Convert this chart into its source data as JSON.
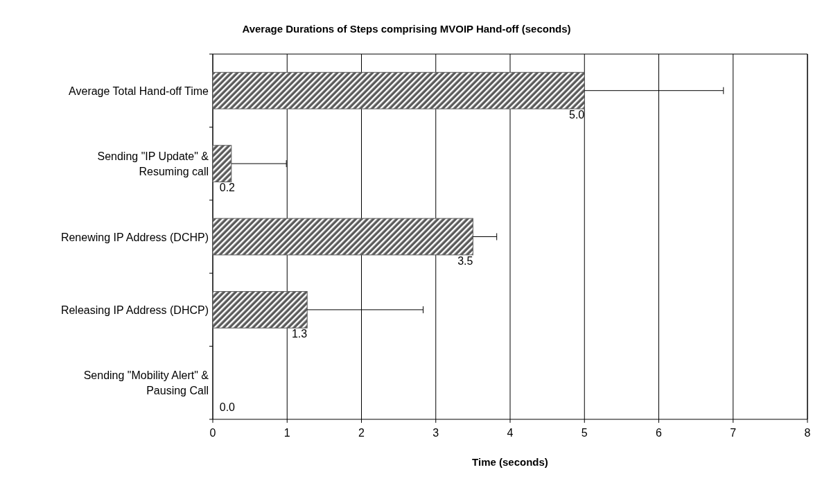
{
  "chart_data": {
    "type": "bar",
    "orientation": "horizontal",
    "title": "Average Durations of Steps comprising MVOIP Hand-off (seconds)",
    "xlabel": "Time (seconds)",
    "categories": [
      "Average Total Hand-off Time",
      "Sending \"IP Update\" & Resuming call",
      "Renewing IP Address (DCHP)",
      "Releasing IP Address (DHCP)",
      "Sending \"Mobility Alert\" & Pausing Call"
    ],
    "values": [
      5.0,
      0.25,
      3.5,
      1.27,
      0
    ],
    "value_labels": [
      "5.0",
      "0.2",
      "3.5",
      "1.3",
      "0.0"
    ],
    "errors": [
      1.87,
      0.74,
      0.32,
      1.56,
      null
    ],
    "color": "#5a5a5a",
    "xlim": [
      0,
      8
    ],
    "xticks": [
      0,
      1,
      2,
      3,
      4,
      5,
      6,
      7,
      8
    ],
    "grid": "x"
  }
}
